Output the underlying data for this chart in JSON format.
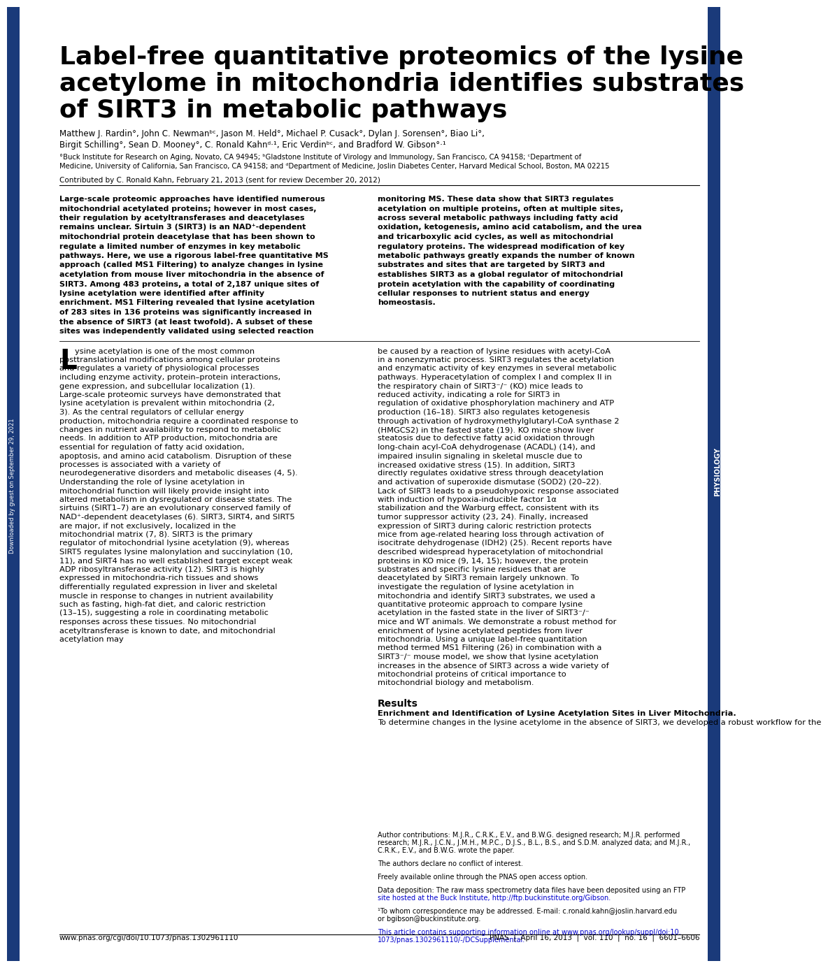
{
  "bg_color": "#ffffff",
  "left_bar_color": "#1a3a7a",
  "pnas_sidebar_color": "#1a3a7a",
  "title": "Label-free quantitative proteomics of the lysine\nacetylome in mitochondria identifies substrates\nof SIRT3 in metabolic pathways",
  "authors_line1": "Matthew J. Rardin°, John C. Newmanᵇᶜ, Jason M. Held°, Michael P. Cusack°, Dylan J. Sorensen°, Biao Li°,",
  "authors_line2": "Birgit Schilling°, Sean D. Mooney°, C. Ronald Kahnᵈ·¹, Eric Verdinᵇᶜ, and Bradford W. Gibson°·¹",
  "affiliations": "°Buck Institute for Research on Aging, Novato, CA 94945; ᵇGladstone Institute of Virology and Immunology, San Francisco, CA 94158; ᶜDepartment of\nMedicine, University of California, San Francisco, CA 94158; and ᵈDepartment of Medicine, Joslin Diabetes Center, Harvard Medical School, Boston, MA 02215",
  "contributed": "Contributed by C. Ronald Kahn, February 21, 2013 (sent for review December 20, 2012)",
  "abstract_bold": "Large-scale proteomic approaches have identified numerous mitochondrial acetylated proteins; however in most cases, their regulation by acetyltransferases and deacetylases remains unclear. Sirtuin 3 (SIRT3) is an NAD⁺-dependent mitochondrial protein deacetylase that has been shown to regulate a limited number of enzymes in key metabolic pathways. Here, we use a rigorous label-free quantitative MS approach (called MS1 Filtering) to analyze changes in lysine acetylation from mouse liver mitochondria in the absence of SIRT3. Among 483 proteins, a total of 2,187 unique sites of lysine acetylation were identified after affinity enrichment. MS1 Filtering revealed that lysine acetylation of 283 sites in 136 proteins was significantly increased in the absence of SIRT3 (at least twofold). A subset of these sites was independently validated using selected reaction monitoring MS. These data show that SIRT3 regulates acetylation on multiple proteins, often at multiple sites, across several metabolic pathways including fatty acid oxidation, ketogenesis, amino acid catabolism, and the urea and tricarboxylic acid cycles, as well as mitochondrial regulatory proteins. The widespread modification of key metabolic pathways greatly expands the number of known substrates and sites that are targeted by SIRT3 and establishes SIRT3 as a global regulator of mitochondrial protein acetylation with the capability of coordinating cellular responses to nutrient status and energy homeostasis.",
  "col1_intro": "Lysine acetylation is one of the most common posttranslational modifications among cellular proteins and regulates a variety of physiological processes including enzyme activity, protein–protein interactions, gene expression, and subcellular localization (1). Large-scale proteomic surveys have demonstrated that lysine acetylation is prevalent within mitochondria (2, 3). As the central regulators of cellular energy production, mitochondria require a coordinated response to changes in nutrient availability to respond to metabolic needs. In addition to ATP production, mitochondria are essential for regulation of fatty acid oxidation, apoptosis, and amino acid catabolism. Disruption of these processes is associated with a variety of neurodegenerative disorders and metabolic diseases (4, 5). Understanding the role of lysine acetylation in mitochondrial function will likely provide insight into altered metabolism in dysregulated or disease states.\n   The sirtuins (SIRT1–7) are an evolutionary conserved family of NAD⁺-dependent deacetylases (6). SIRT3, SIRT4, and SIRT5 are major, if not exclusively, localized in the mitochondrial matrix (7, 8). SIRT3 is the primary regulator of mitochondrial lysine acetylation (9), whereas SIRT5 regulates lysine malonylation and succinylation (10, 11), and SIRT4 has no well established target except weak ADP ribosyltransferase activity (12). SIRT3 is highly expressed in mitochondria-rich tissues and shows differentially regulated expression in liver and skeletal muscle in response to changes in nutrient availability such as fasting, high-fat diet, and caloric restriction (13–15), suggesting a role in coordinating metabolic responses across these tissues. No mitochondrial acetyltransferase is known to date, and mitochondrial acetylation may",
  "col2_intro": "be caused by a reaction of lysine residues with acetyl-CoA in a nonenzymatic process.\n   SIRT3 regulates the acetylation and enzymatic activity of key enzymes in several metabolic pathways. Hyperacetylation of complex I and complex II in the respiratory chain of SIRT3⁻/⁻ (KO) mice leads to reduced activity, indicating a role for SIRT3 in regulation of oxidative phosphorylation machinery and ATP production (16–18). SIRT3 also regulates ketogenesis through activation of hydroxymethylglutaryl-CoA synthase 2 (HMGCS2) in the fasted state (19). KO mice show liver steatosis due to defective fatty acid oxidation through long-chain acyl-CoA dehydrogenase (ACADL) (14), and impaired insulin signaling in skeletal muscle due to increased oxidative stress (15). In addition, SIRT3 directly regulates oxidative stress through deacetylation and activation of superoxide dismutase (SOD2) (20–22). Lack of SIRT3 leads to a pseudohypoxic response associated with induction of hypoxia-inducible factor 1α stabilization and the Warburg effect, consistent with its tumor suppressor activity (23, 24). Finally, increased expression of SIRT3 during caloric restriction protects mice from age-related hearing loss through activation of isocitrate dehydrogenase (IDH2) (25).\n   Recent reports have described widespread hyperacetylation of mitochondrial proteins in KO mice (9, 14, 15); however, the protein substrates and specific lysine residues that are deacetylated by SIRT3 remain largely unknown. To investigate the regulation of lysine acetylation in mitochondria and identify SIRT3 substrates, we used a quantitative proteomic approach to compare lysine acetylation in the fasted state in the liver of SIRT3⁻/⁻ mice and WT animals. We demonstrate a robust method for enrichment of lysine acetylated peptides from liver mitochondria. Using a unique label-free quantitation method termed MS1 Filtering (26) in combination with a SIRT3⁻/⁻ mouse model, we show that lysine acetylation increases in the absence of SIRT3 across a wide variety of mitochondrial proteins of critical importance to mitochondrial biology and metabolism.",
  "results_header": "Results",
  "results_subheader": "Enrichment and Identification of Lysine Acetylation Sites in Liver Mitochondria.",
  "results_text": "To determine changes in the lysine acetylome in the absence of SIRT3, we developed a robust workflow for the",
  "footnotes": "Author contributions: M.J.R., C.R.K., E.V., and B.W.G. designed research; M.J.R. performed\nresearch; M.J.R., J.C.N., J.M.H., M.P.C., D.J.S., B.L., B.S., and S.D.M. analyzed data; and M.J.R.,\nC.R.K., E.V., and B.W.G. wrote the paper.\n\nThe authors declare no conflict of interest.\n\nFreely available online through the PNAS open access option.\n\nData deposition: The raw mass spectrometry data files have been deposited using an FTP\nsite hosted at the Buck Institute, http://ftp.buckinstitute.org/Gibson.\n\n¹To whom correspondence may be addressed. E-mail: c.ronald.kahn@joslin.harvard.edu\nor bgibson@buckinstitute.org.\n\nThis article contains supporting information online at www.pnas.org/lookup/suppl/doi:10.\n1073/pnas.1302961110/-/DCSupplemental.",
  "footer_left": "www.pnas.org/cgi/doi/10.1073/pnas.1302961110",
  "footer_right": "PNAS  |  April 16, 2013  |  vol. 110  |  no. 16  |  6601–6606",
  "physiology_label": "PHYSIOLOGY",
  "sidebar_text": "Downloaded by guest on September 29, 2021",
  "link_color": "#0000cc",
  "link1": "http://ftp.buckinstitute.org/Gibson",
  "link2": "www.pnas.org/lookup/suppl/doi:10.\n1073/pnas.1302961110/-/DCSupplemental."
}
